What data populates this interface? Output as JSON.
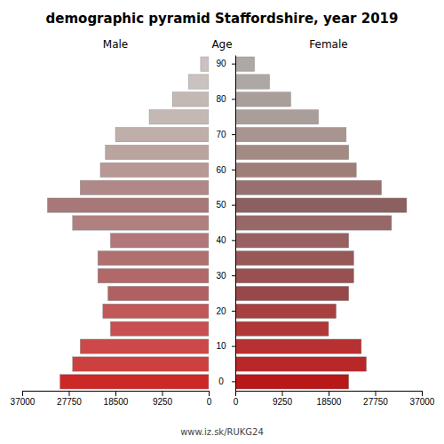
{
  "chart_data": {
    "type": "bar",
    "orientation": "horizontal",
    "title": "demographic pyramid Staffordshire, year 2019",
    "ylabel": "Age",
    "categories": [
      "90",
      null,
      "80",
      null,
      "70",
      null,
      "60",
      null,
      "50",
      null,
      "40",
      null,
      "30",
      null,
      "20",
      null,
      "10",
      null,
      "0"
    ],
    "series": [
      {
        "name": "Male",
        "values": [
          1600,
          4000,
          7200,
          11800,
          18500,
          20500,
          21500,
          25500,
          32000,
          27000,
          19500,
          22000,
          22000,
          20000,
          21000,
          19500,
          25500,
          27000,
          29500
        ],
        "colors": [
          "#c9c2be",
          "#c9c2be",
          "#c4b8b5",
          "#c4b8b5",
          "#c0aeaa",
          "#baa49e",
          "#b89894",
          "#b08888",
          "#a87878",
          "#b08080",
          "#b07878",
          "#b07070",
          "#b06868",
          "#b06060",
          "#c05858",
          "#c85050",
          "#cd4848",
          "#cd4040",
          "#cc2828"
        ]
      },
      {
        "name": "Female",
        "values": [
          3800,
          6800,
          11000,
          16500,
          22000,
          22500,
          24000,
          29000,
          34000,
          31000,
          22500,
          23500,
          23500,
          22500,
          20000,
          18500,
          25000,
          26000,
          22500
        ],
        "colors": [
          "#aea8a4",
          "#aea8a4",
          "#aa9e9a",
          "#aa9e9a",
          "#a89490",
          "#a48a84",
          "#a07e78",
          "#987070",
          "#8c6060",
          "#986868",
          "#986060",
          "#985858",
          "#985050",
          "#984848",
          "#a84040",
          "#b03838",
          "#b83030",
          "#b82828",
          "#b81818"
        ]
      }
    ],
    "xlim": [
      0,
      37000
    ],
    "xticks": [
      0,
      9250,
      18500,
      27750,
      37000
    ],
    "grid": false,
    "annotations": [
      "www.iz.sk/RUKG24"
    ]
  }
}
